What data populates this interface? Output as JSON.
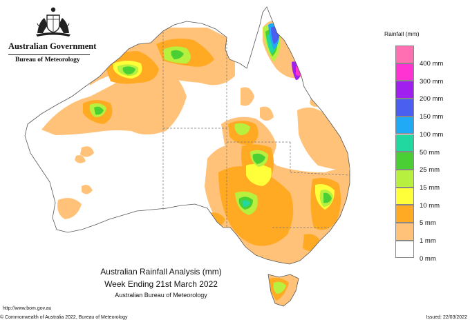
{
  "header": {
    "government": "Australian Government",
    "bureau": "Bureau of Meteorology"
  },
  "legend": {
    "title": "Rainfall (mm)",
    "items": [
      {
        "label": "400 mm",
        "color": "#ff6fb2"
      },
      {
        "label": "300 mm",
        "color": "#ff33d2"
      },
      {
        "label": "200 mm",
        "color": "#a020f0"
      },
      {
        "label": "150 mm",
        "color": "#4a5ef0"
      },
      {
        "label": "100 mm",
        "color": "#20aaf5"
      },
      {
        "label": "50 mm",
        "color": "#20d8a0"
      },
      {
        "label": "25 mm",
        "color": "#4ad034"
      },
      {
        "label": "15 mm",
        "color": "#b8f040"
      },
      {
        "label": "10 mm",
        "color": "#ffff3a"
      },
      {
        "label": "5 mm",
        "color": "#ffaa22"
      },
      {
        "label": "1 mm",
        "color": "#ffc278"
      },
      {
        "label": "0 mm",
        "color": "#ffffff"
      }
    ]
  },
  "map": {
    "title": "Australian Rainfall Analysis (mm)",
    "period": "Week Ending 21st March 2022",
    "agency": "Australian Bureau of Meteorology"
  },
  "footer": {
    "url": "http://www.bom.gov.au",
    "copyright": "© Commonwealth of Australia 2022, Bureau of Meteorology",
    "issued": "Issued: 22/03/2022"
  }
}
